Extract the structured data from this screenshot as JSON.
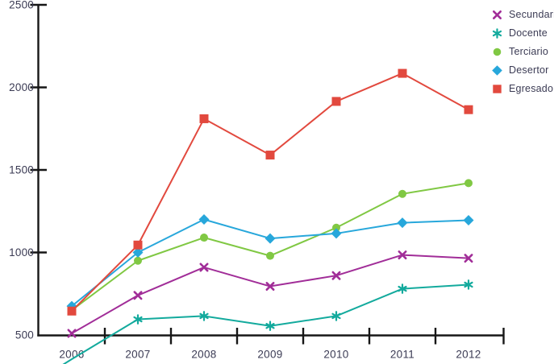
{
  "chart_data": {
    "type": "line",
    "title": "",
    "xlabel": "",
    "ylabel": "",
    "x": [
      "2006",
      "2007",
      "2008",
      "2009",
      "2010",
      "2011",
      "2012"
    ],
    "y_axis": {
      "min": 500,
      "max": 2500,
      "ticks": [
        500,
        1000,
        1500,
        2000,
        2500
      ]
    },
    "grid": false,
    "legend_position": "top-right",
    "series": [
      {
        "name": "Secundaria",
        "marker": "x",
        "color": "#A12D98",
        "values": [
          510,
          740,
          910,
          795,
          860,
          985,
          965
        ]
      },
      {
        "name": "Docente",
        "marker": "asterisk",
        "color": "#13AA9D",
        "values": [
          null,
          595,
          615,
          555,
          615,
          780,
          805
        ],
        "note": "2006 point below axis; line enters from bottom-left edge"
      },
      {
        "name": "Terciario",
        "marker": "circle",
        "color": "#80C843",
        "values": [
          650,
          950,
          1090,
          980,
          1150,
          1355,
          1420
        ]
      },
      {
        "name": "Desertor",
        "marker": "diamond",
        "color": "#27A7DB",
        "values": [
          675,
          1000,
          1200,
          1085,
          1115,
          1180,
          1195
        ]
      },
      {
        "name": "Egresado",
        "marker": "square",
        "color": "#E2493E",
        "values": [
          645,
          1045,
          1810,
          1590,
          1915,
          2085,
          1865
        ]
      }
    ],
    "colors": {
      "axis": "#161616",
      "text": "#3B3B54",
      "background": "#FFFFFF"
    }
  }
}
